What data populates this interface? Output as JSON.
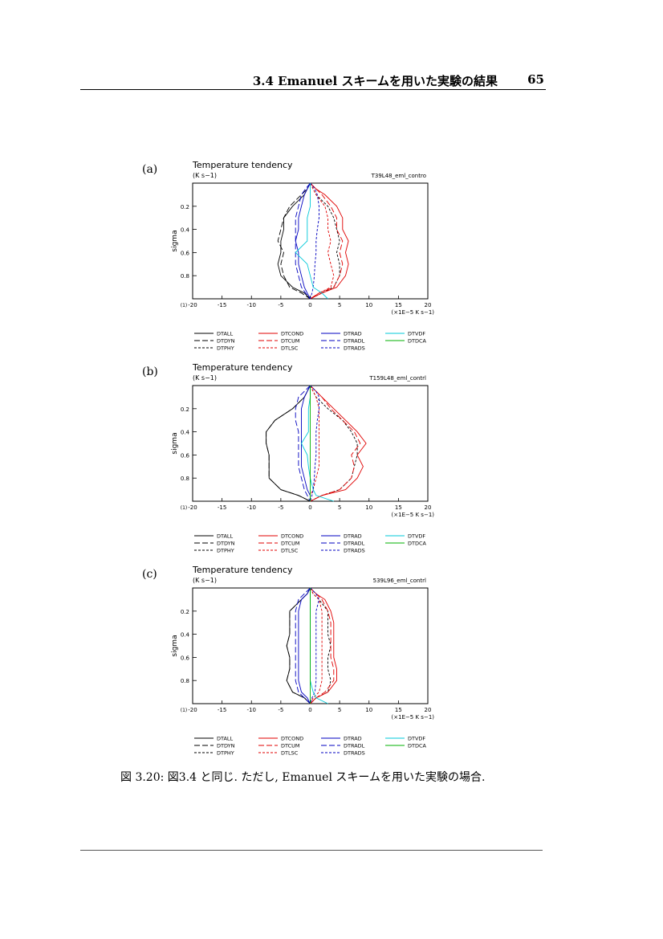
{
  "header": {
    "section": "3.4 Emanuel スキームを用いた実験の結果",
    "page_number": "65"
  },
  "panels": [
    {
      "label": "(a)",
      "title": "Temperature tendency",
      "units": "(K s−1)",
      "run_id": "T39L48_eml_contro"
    },
    {
      "label": "(b)",
      "title": "Temperature tendency",
      "units": "(K s−1)",
      "run_id": "T159L48_eml_contrl"
    },
    {
      "label": "(c)",
      "title": "Temperature tendency",
      "units": "(K s−1)",
      "run_id": "539L96_eml_contrl"
    }
  ],
  "axes": {
    "ylabel": "sigma",
    "xlabel_unit": "(×1E−5 K s−1)",
    "yticks": [
      "0.2",
      "0.4",
      "0.6",
      "0.8"
    ],
    "xticks": [
      "-20",
      "-15",
      "-10",
      "-5",
      "0",
      "5",
      "10",
      "15",
      "20"
    ],
    "corner": "(1)"
  },
  "legend": [
    {
      "name": "DTALL",
      "color": "#000000",
      "dash": "solid"
    },
    {
      "name": "DTDYN",
      "color": "#000000",
      "dash": "longdash"
    },
    {
      "name": "DTPHY",
      "color": "#000000",
      "dash": "dash"
    },
    {
      "name": "DTCOND",
      "color": "#e00000",
      "dash": "solid"
    },
    {
      "name": "DTCUM",
      "color": "#e00000",
      "dash": "longdash"
    },
    {
      "name": "DTLSC",
      "color": "#e00000",
      "dash": "dash"
    },
    {
      "name": "DTRAD",
      "color": "#0000c0",
      "dash": "solid"
    },
    {
      "name": "DTRADL",
      "color": "#0000c0",
      "dash": "longdash"
    },
    {
      "name": "DTRADS",
      "color": "#0000c0",
      "dash": "dash"
    },
    {
      "name": "DTVDF",
      "color": "#00c8d8",
      "dash": "solid"
    },
    {
      "name": "DTDCA",
      "color": "#00b000",
      "dash": "solid"
    }
  ],
  "chart_data": [
    {
      "type": "line",
      "title": "Temperature tendency",
      "ylabel": "sigma",
      "xlabel": "(×1E−5 K s−1)",
      "xlim": [
        -20,
        20
      ],
      "ylim": [
        0.0,
        1.0
      ],
      "y_inverted": true,
      "sigma": [
        0.0,
        0.05,
        0.1,
        0.2,
        0.3,
        0.4,
        0.5,
        0.6,
        0.7,
        0.8,
        0.9,
        0.95,
        1.0
      ],
      "series": [
        {
          "name": "DTALL",
          "x": [
            0,
            -0.5,
            -1,
            -3,
            -4.5,
            -4.5,
            -5,
            -5,
            -5.5,
            -5,
            -3,
            -1,
            0
          ]
        },
        {
          "name": "DTDYN",
          "x": [
            0,
            -0.5,
            -1.5,
            -3.5,
            -4.5,
            -5,
            -5.5,
            -4.5,
            -5,
            -4.5,
            -3.5,
            -1.5,
            0
          ]
        },
        {
          "name": "DTPHY",
          "x": [
            0,
            0.5,
            1,
            3,
            4,
            4.5,
            5,
            4.5,
            5,
            5,
            4,
            2,
            0
          ]
        },
        {
          "name": "DTCOND",
          "x": [
            0,
            1,
            2.5,
            4.5,
            5.5,
            5.5,
            6.5,
            6,
            6.5,
            6,
            4.5,
            2,
            0
          ]
        },
        {
          "name": "DTCUM",
          "x": [
            0,
            1,
            2,
            3.5,
            4.5,
            4.5,
            5.5,
            5,
            5.5,
            5,
            4,
            1.5,
            0
          ]
        },
        {
          "name": "DTLSC",
          "x": [
            0,
            0.5,
            1,
            2.5,
            3,
            3,
            3.5,
            3,
            3.5,
            4,
            3.5,
            1.5,
            0
          ]
        },
        {
          "name": "DTRAD",
          "x": [
            0,
            -0.5,
            -1,
            -1.5,
            -2,
            -2,
            -2.5,
            -2,
            -2,
            -1.5,
            -1,
            -0.5,
            0
          ]
        },
        {
          "name": "DTRADL",
          "x": [
            0,
            -0.8,
            -1.5,
            -2,
            -2.5,
            -2.5,
            -2.5,
            -2.5,
            -2.5,
            -2,
            -1.5,
            -0.8,
            0
          ]
        },
        {
          "name": "DTRADS",
          "x": [
            0,
            0.8,
            1.2,
            1.5,
            1.5,
            1.2,
            1,
            1,
            0.8,
            0.7,
            0.5,
            0.3,
            0
          ]
        },
        {
          "name": "DTVDF",
          "x": [
            0,
            0,
            0,
            0,
            -0.5,
            -0.5,
            -0.5,
            -2.5,
            -0.5,
            0,
            0.5,
            2,
            3
          ]
        }
      ]
    },
    {
      "type": "line",
      "title": "Temperature tendency",
      "ylabel": "sigma",
      "xlabel": "(×1E−5 K s−1)",
      "xlim": [
        -20,
        20
      ],
      "ylim": [
        0.0,
        1.0
      ],
      "y_inverted": true,
      "sigma": [
        0.0,
        0.05,
        0.1,
        0.2,
        0.3,
        0.4,
        0.5,
        0.6,
        0.7,
        0.8,
        0.9,
        0.95,
        1.0
      ],
      "series": [
        {
          "name": "DTALL",
          "x": [
            0,
            -0.5,
            -1,
            -3,
            -6,
            -7.5,
            -7.5,
            -7,
            -7,
            -7,
            -5,
            -2,
            0
          ]
        },
        {
          "name": "DTDYN",
          "x": [
            0,
            -0.5,
            -1,
            -3,
            -6,
            -7.5,
            -7.5,
            -7,
            -7,
            -7,
            -5,
            -2,
            0
          ]
        },
        {
          "name": "DTPHY",
          "x": [
            0,
            0.5,
            1,
            3,
            5.5,
            7,
            8,
            8,
            7.5,
            7,
            5,
            2,
            0
          ]
        },
        {
          "name": "DTCOND",
          "x": [
            0,
            1,
            2,
            4,
            6,
            8,
            9.5,
            8,
            9,
            8,
            6,
            2,
            0
          ]
        },
        {
          "name": "DTCUM",
          "x": [
            0,
            1,
            2,
            3.5,
            5.5,
            7.5,
            8.5,
            7,
            7.5,
            7,
            5,
            2,
            0
          ]
        },
        {
          "name": "DTLSC",
          "x": [
            0,
            0.5,
            1,
            1.5,
            1.5,
            1.5,
            1.5,
            1.5,
            1.5,
            1,
            0.5,
            0,
            0
          ]
        },
        {
          "name": "DTRAD",
          "x": [
            0,
            -0.5,
            -1,
            -1.5,
            -1.5,
            -1.5,
            -1.5,
            -1.5,
            -1.5,
            -1,
            -0.5,
            0,
            0
          ]
        },
        {
          "name": "DTRADL",
          "x": [
            0,
            -1,
            -2,
            -2.5,
            -2.5,
            -2,
            -2,
            -2,
            -2,
            -1.5,
            -1,
            -0.5,
            0
          ]
        },
        {
          "name": "DTRADS",
          "x": [
            0,
            1,
            1.5,
            1.5,
            1.2,
            1,
            1,
            1,
            0.8,
            0.7,
            0.5,
            0.3,
            0
          ]
        },
        {
          "name": "DTVDF",
          "x": [
            0,
            0,
            0,
            -0.3,
            -0.3,
            -0.3,
            -1.5,
            -0.5,
            -0.3,
            0,
            0.5,
            1,
            4
          ]
        },
        {
          "name": "DTDCA",
          "x": [
            0,
            0,
            0,
            0,
            0,
            0,
            0,
            0,
            0,
            0,
            0,
            0,
            0
          ]
        }
      ]
    },
    {
      "type": "line",
      "title": "Temperature tendency",
      "ylabel": "sigma",
      "xlabel": "(×1E−5 K s−1)",
      "xlim": [
        -20,
        20
      ],
      "ylim": [
        0.0,
        1.0
      ],
      "y_inverted": true,
      "sigma": [
        0.0,
        0.05,
        0.1,
        0.2,
        0.3,
        0.4,
        0.5,
        0.6,
        0.7,
        0.8,
        0.9,
        0.95,
        1.0
      ],
      "series": [
        {
          "name": "DTALL",
          "x": [
            0,
            -0.5,
            -1.5,
            -3.5,
            -3.5,
            -3.5,
            -4,
            -3.5,
            -3.5,
            -4,
            -3,
            -1,
            0
          ]
        },
        {
          "name": "DTDYN",
          "x": [
            0,
            -0.5,
            -1.5,
            -3.5,
            -3.5,
            -3.5,
            -4,
            -3.5,
            -3.5,
            -4,
            -3,
            -1,
            0
          ]
        },
        {
          "name": "DTPHY",
          "x": [
            0,
            0.5,
            1.5,
            3,
            3,
            3,
            3.5,
            3,
            3,
            3.5,
            3,
            1,
            0
          ]
        },
        {
          "name": "DTCOND",
          "x": [
            0,
            1,
            2.5,
            3.5,
            4,
            4,
            4,
            4,
            4.5,
            4.5,
            3,
            1,
            0
          ]
        },
        {
          "name": "DTCUM",
          "x": [
            0,
            1,
            2,
            3,
            3.5,
            3.5,
            3.5,
            3.5,
            4,
            4,
            2.5,
            1,
            0
          ]
        },
        {
          "name": "DTLSC",
          "x": [
            0,
            0.5,
            1.5,
            2,
            2,
            2,
            2,
            2,
            2,
            2,
            1.5,
            0.5,
            0
          ]
        },
        {
          "name": "DTRAD",
          "x": [
            0,
            -0.5,
            -1.5,
            -2,
            -2,
            -2,
            -2,
            -2,
            -2,
            -2,
            -1.5,
            -0.5,
            0
          ]
        },
        {
          "name": "DTRADL",
          "x": [
            0,
            -1,
            -2,
            -2.5,
            -2.5,
            -2.5,
            -2.5,
            -2.5,
            -2.5,
            -2.5,
            -2,
            -1,
            0
          ]
        },
        {
          "name": "DTRADS",
          "x": [
            0,
            1,
            1.5,
            1,
            1,
            1,
            1,
            1,
            1,
            1,
            0.8,
            0.3,
            0
          ]
        },
        {
          "name": "DTVDF",
          "x": [
            0,
            0,
            0,
            0,
            0,
            0,
            0,
            0,
            0,
            0,
            0.5,
            1,
            3
          ]
        },
        {
          "name": "DTDCA",
          "x": [
            0,
            0,
            0,
            0,
            0,
            0,
            0,
            0,
            0,
            0,
            0,
            0,
            0
          ]
        }
      ]
    }
  ],
  "caption": "図 3.20: 図3.4 と同じ. ただし, Emanuel スキームを用いた実験の場合."
}
